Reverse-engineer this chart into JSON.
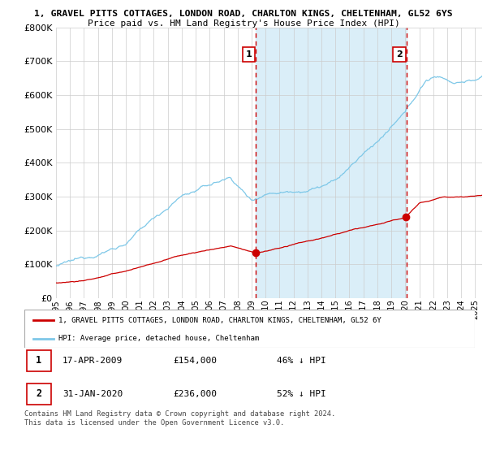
{
  "title_line1": "1, GRAVEL PITTS COTTAGES, LONDON ROAD, CHARLTON KINGS, CHELTENHAM, GL52 6YS",
  "title_line2": "Price paid vs. HM Land Registry's House Price Index (HPI)",
  "ylim": [
    0,
    800000
  ],
  "yticks": [
    0,
    100000,
    200000,
    300000,
    400000,
    500000,
    600000,
    700000,
    800000
  ],
  "ytick_labels": [
    "£0",
    "£100K",
    "£200K",
    "£300K",
    "£400K",
    "£500K",
    "£600K",
    "£700K",
    "£800K"
  ],
  "hpi_color": "#7ec8e8",
  "hpi_fill_color": "#daeef8",
  "price_color": "#cc0000",
  "marker1_year": 2009.29,
  "marker1_price": 154000,
  "marker2_year": 2020.08,
  "marker2_price": 236000,
  "xlim_left": 1995.0,
  "xlim_right": 2025.5,
  "legend_property": "1, GRAVEL PITTS COTTAGES, LONDON ROAD, CHARLTON KINGS, CHELTENHAM, GL52 6Y",
  "legend_hpi": "HPI: Average price, detached house, Cheltenham",
  "note1_label": "1",
  "note1_date": "17-APR-2009",
  "note1_price": "£154,000",
  "note1_pct": "46% ↓ HPI",
  "note2_label": "2",
  "note2_date": "31-JAN-2020",
  "note2_price": "£236,000",
  "note2_pct": "52% ↓ HPI",
  "copyright": "Contains HM Land Registry data © Crown copyright and database right 2024.\nThis data is licensed under the Open Government Licence v3.0."
}
